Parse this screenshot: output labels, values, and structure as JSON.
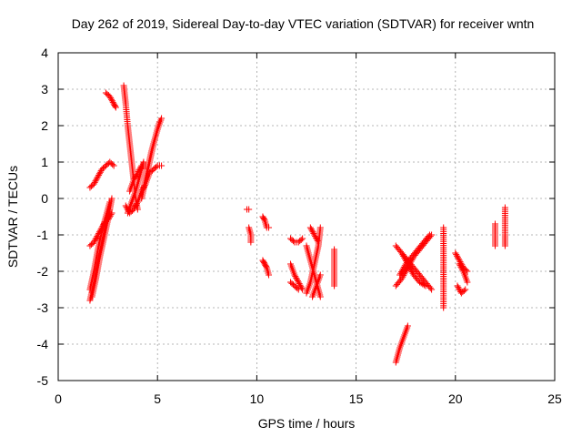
{
  "chart_data": {
    "type": "scatter",
    "title": "Day 262 of 2019, Sidereal Day-to-day VTEC variation (SDTVAR) for receiver wntn",
    "xlabel": "GPS time / hours",
    "ylabel": "SDTVAR / TECUs",
    "xlim": [
      0,
      25
    ],
    "ylim": [
      -5,
      4
    ],
    "xticks": [
      "0",
      "5",
      "10",
      "15",
      "20",
      "25"
    ],
    "yticks": [
      "-5",
      "-4",
      "-3",
      "-2",
      "-1",
      "0",
      "1",
      "2",
      "3",
      "4"
    ],
    "grid": true,
    "marker": "plus",
    "color": "#ff0000",
    "segments": [
      [
        [
          1.6,
          -2.8
        ],
        [
          1.8,
          -2.3
        ],
        [
          2.0,
          -1.7
        ],
        [
          2.2,
          -1.2
        ],
        [
          2.4,
          -0.7
        ],
        [
          2.6,
          -0.3
        ],
        [
          2.7,
          0.0
        ]
      ],
      [
        [
          1.6,
          -2.5
        ],
        [
          1.8,
          -2.0
        ],
        [
          2.0,
          -1.4
        ],
        [
          2.2,
          -0.9
        ],
        [
          2.4,
          -0.5
        ],
        [
          2.6,
          -0.1
        ]
      ],
      [
        [
          1.7,
          -2.7
        ],
        [
          1.9,
          -2.2
        ],
        [
          2.1,
          -1.6
        ],
        [
          2.3,
          -1.1
        ],
        [
          2.5,
          -0.6
        ],
        [
          2.7,
          -0.4
        ]
      ],
      [
        [
          1.6,
          -1.3
        ],
        [
          1.8,
          -1.2
        ],
        [
          2.0,
          -1.0
        ],
        [
          2.2,
          -0.8
        ],
        [
          2.4,
          -0.6
        ],
        [
          2.6,
          -0.4
        ]
      ],
      [
        [
          1.6,
          0.3
        ],
        [
          1.8,
          0.4
        ],
        [
          2.0,
          0.6
        ],
        [
          2.2,
          0.8
        ],
        [
          2.4,
          0.9
        ],
        [
          2.6,
          1.0
        ],
        [
          2.8,
          0.9
        ]
      ],
      [
        [
          2.4,
          2.9
        ],
        [
          2.6,
          2.8
        ],
        [
          2.8,
          2.6
        ],
        [
          2.9,
          2.5
        ]
      ],
      [
        [
          3.3,
          3.1
        ],
        [
          3.4,
          2.6
        ],
        [
          3.5,
          2.0
        ],
        [
          3.6,
          1.5
        ],
        [
          3.7,
          1.0
        ],
        [
          3.8,
          0.5
        ],
        [
          3.9,
          0.0
        ],
        [
          4.0,
          -0.3
        ]
      ],
      [
        [
          3.6,
          0.2
        ],
        [
          3.8,
          0.5
        ],
        [
          4.0,
          0.7
        ],
        [
          4.2,
          0.9
        ],
        [
          4.4,
          0.9
        ]
      ],
      [
        [
          3.4,
          -0.2
        ],
        [
          3.6,
          -0.4
        ],
        [
          3.8,
          -0.3
        ],
        [
          4.0,
          -0.1
        ],
        [
          4.2,
          0.2
        ],
        [
          4.4,
          0.4
        ],
        [
          4.6,
          0.7
        ],
        [
          4.8,
          0.8
        ],
        [
          5.0,
          0.9
        ],
        [
          5.2,
          0.9
        ]
      ],
      [
        [
          3.5,
          -0.4
        ],
        [
          3.7,
          -0.1
        ],
        [
          3.9,
          0.2
        ],
        [
          4.1,
          0.6
        ],
        [
          4.3,
          1.0
        ]
      ],
      [
        [
          4.2,
          0.0
        ],
        [
          4.4,
          0.5
        ],
        [
          4.6,
          1.0
        ],
        [
          4.8,
          1.5
        ],
        [
          5.0,
          1.9
        ],
        [
          5.2,
          2.2
        ]
      ],
      [
        [
          4.3,
          0.3
        ],
        [
          4.5,
          0.8
        ],
        [
          4.7,
          1.3
        ],
        [
          4.9,
          1.7
        ],
        [
          5.1,
          2.1
        ]
      ],
      [
        [
          9.5,
          -0.3
        ],
        [
          9.6,
          -0.3
        ]
      ],
      [
        [
          9.6,
          -0.8
        ],
        [
          9.7,
          -1.0
        ],
        [
          9.7,
          -1.2
        ]
      ],
      [
        [
          10.3,
          -0.5
        ],
        [
          10.4,
          -0.6
        ],
        [
          10.5,
          -0.8
        ],
        [
          10.6,
          -0.8
        ]
      ],
      [
        [
          10.3,
          -1.7
        ],
        [
          10.4,
          -1.8
        ],
        [
          10.5,
          -1.9
        ],
        [
          10.6,
          -2.1
        ]
      ],
      [
        [
          11.7,
          -1.1
        ],
        [
          11.9,
          -1.2
        ],
        [
          12.1,
          -1.2
        ],
        [
          12.3,
          -1.1
        ]
      ],
      [
        [
          11.7,
          -1.8
        ],
        [
          11.9,
          -2.1
        ],
        [
          12.1,
          -2.3
        ],
        [
          12.3,
          -2.5
        ]
      ],
      [
        [
          11.7,
          -2.3
        ],
        [
          11.9,
          -2.4
        ],
        [
          12.1,
          -2.5
        ]
      ],
      [
        [
          12.5,
          -1.3
        ],
        [
          12.7,
          -1.7
        ],
        [
          12.9,
          -2.1
        ],
        [
          13.1,
          -2.5
        ],
        [
          13.2,
          -2.7
        ]
      ],
      [
        [
          12.5,
          -2.6
        ],
        [
          12.7,
          -2.3
        ],
        [
          12.9,
          -1.8
        ],
        [
          13.1,
          -1.3
        ],
        [
          13.2,
          -0.8
        ]
      ],
      [
        [
          12.7,
          -0.8
        ],
        [
          12.9,
          -1.0
        ],
        [
          13.1,
          -1.2
        ]
      ],
      [
        [
          12.8,
          -2.7
        ],
        [
          13.0,
          -2.4
        ],
        [
          13.2,
          -2.1
        ]
      ],
      [
        [
          13.9,
          -1.4
        ],
        [
          13.9,
          -1.7
        ],
        [
          13.9,
          -2.0
        ],
        [
          13.9,
          -2.4
        ]
      ],
      [
        [
          17.0,
          -4.5
        ],
        [
          17.2,
          -4.1
        ],
        [
          17.4,
          -3.8
        ],
        [
          17.6,
          -3.5
        ]
      ],
      [
        [
          17.0,
          -1.3
        ],
        [
          17.3,
          -1.5
        ],
        [
          17.6,
          -1.7
        ],
        [
          17.9,
          -1.9
        ],
        [
          18.2,
          -2.1
        ],
        [
          18.5,
          -2.3
        ],
        [
          18.8,
          -2.5
        ]
      ],
      [
        [
          17.0,
          -2.4
        ],
        [
          17.3,
          -2.2
        ],
        [
          17.6,
          -1.9
        ],
        [
          17.9,
          -1.6
        ],
        [
          18.2,
          -1.4
        ],
        [
          18.5,
          -1.2
        ],
        [
          18.8,
          -1.0
        ]
      ],
      [
        [
          17.2,
          -2.1
        ],
        [
          17.5,
          -1.8
        ],
        [
          17.8,
          -1.6
        ],
        [
          18.1,
          -1.4
        ],
        [
          18.4,
          -1.2
        ],
        [
          18.7,
          -1.0
        ]
      ],
      [
        [
          17.3,
          -1.5
        ],
        [
          17.6,
          -1.8
        ],
        [
          17.9,
          -2.1
        ],
        [
          18.2,
          -2.3
        ],
        [
          18.5,
          -2.4
        ]
      ],
      [
        [
          19.4,
          -0.8
        ],
        [
          19.4,
          -1.4
        ],
        [
          19.4,
          -2.4
        ],
        [
          19.4,
          -3.0
        ]
      ],
      [
        [
          20.0,
          -1.5
        ],
        [
          20.2,
          -1.7
        ],
        [
          20.4,
          -1.9
        ],
        [
          20.6,
          -2.0
        ]
      ],
      [
        [
          20.1,
          -2.4
        ],
        [
          20.3,
          -2.6
        ],
        [
          20.5,
          -2.5
        ]
      ],
      [
        [
          20.2,
          -1.8
        ],
        [
          20.4,
          -2.0
        ],
        [
          20.6,
          -2.3
        ]
      ],
      [
        [
          22.0,
          -0.7
        ],
        [
          22.0,
          -1.0
        ],
        [
          22.0,
          -1.2
        ],
        [
          22.0,
          -1.3
        ]
      ],
      [
        [
          22.5,
          -0.25
        ],
        [
          22.5,
          -1.0
        ],
        [
          22.5,
          -1.2
        ],
        [
          22.5,
          -1.3
        ]
      ]
    ]
  }
}
